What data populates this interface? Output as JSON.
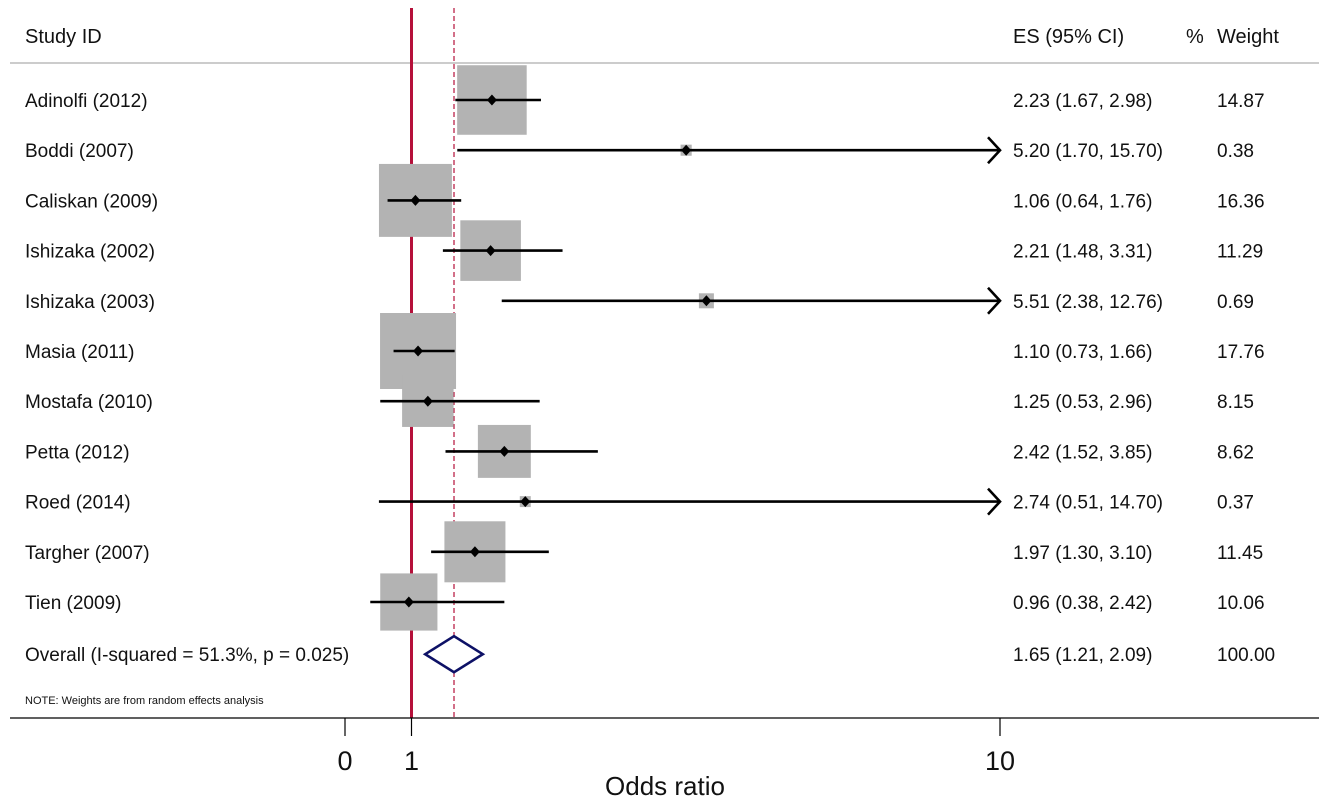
{
  "chart_data": {
    "type": "forest",
    "headers": {
      "study": "Study  ID",
      "es": "ES (95% CI)",
      "weight_pct": "%",
      "weight": "Weight"
    },
    "studies": [
      {
        "label": "Adinolfi (2012)",
        "es": 2.23,
        "lo": 1.67,
        "hi": 2.98,
        "es_text": "2.23 (1.67, 2.98)",
        "weight": 14.87,
        "weight_text": "14.87"
      },
      {
        "label": "Boddi (2007)",
        "es": 5.2,
        "lo": 1.7,
        "hi": 15.7,
        "es_text": "5.20 (1.70, 15.70)",
        "weight": 0.38,
        "weight_text": "0.38"
      },
      {
        "label": "Caliskan (2009)",
        "es": 1.06,
        "lo": 0.64,
        "hi": 1.76,
        "es_text": "1.06 (0.64, 1.76)",
        "weight": 16.36,
        "weight_text": "16.36"
      },
      {
        "label": "Ishizaka (2002)",
        "es": 2.21,
        "lo": 1.48,
        "hi": 3.31,
        "es_text": "2.21 (1.48, 3.31)",
        "weight": 11.29,
        "weight_text": "11.29"
      },
      {
        "label": "Ishizaka (2003)",
        "es": 5.51,
        "lo": 2.38,
        "hi": 12.76,
        "es_text": "5.51 (2.38, 12.76)",
        "weight": 0.69,
        "weight_text": "0.69"
      },
      {
        "label": "Masia (2011)",
        "es": 1.1,
        "lo": 0.73,
        "hi": 1.66,
        "es_text": "1.10 (0.73, 1.66)",
        "weight": 17.76,
        "weight_text": "17.76"
      },
      {
        "label": "Mostafa (2010)",
        "es": 1.25,
        "lo": 0.53,
        "hi": 2.96,
        "es_text": "1.25 (0.53, 2.96)",
        "weight": 8.15,
        "weight_text": "8.15"
      },
      {
        "label": "Petta (2012)",
        "es": 2.42,
        "lo": 1.52,
        "hi": 3.85,
        "es_text": "2.42 (1.52, 3.85)",
        "weight": 8.62,
        "weight_text": "8.62"
      },
      {
        "label": "Roed (2014)",
        "es": 2.74,
        "lo": 0.51,
        "hi": 14.7,
        "es_text": "2.74 (0.51, 14.70)",
        "weight": 0.37,
        "weight_text": "0.37"
      },
      {
        "label": "Targher (2007)",
        "es": 1.97,
        "lo": 1.3,
        "hi": 3.1,
        "es_text": "1.97 (1.30, 3.10)",
        "weight": 11.45,
        "weight_text": "11.45"
      },
      {
        "label": "Tien (2009)",
        "es": 0.96,
        "lo": 0.38,
        "hi": 2.42,
        "es_text": "0.96 (0.38, 2.42)",
        "weight": 10.06,
        "weight_text": "10.06"
      }
    ],
    "overall": {
      "label": "Overall  (I-squared = 51.3%, p = 0.025)",
      "es": 1.65,
      "lo": 1.21,
      "hi": 2.09,
      "es_text": "1.65 (1.21, 2.09)",
      "weight_text": "100.00"
    },
    "note": "NOTE: Weights are from random effects analysis",
    "xlabel": "Odds ratio",
    "xticks": [
      {
        "value": 0,
        "label": "0"
      },
      {
        "value": 1,
        "label": "1"
      },
      {
        "value": 10,
        "label": "10"
      }
    ],
    "xlim": [
      -1.0,
      14.3
    ],
    "clip_max": 10,
    "null_line": 1,
    "colors": {
      "null_line": "#b5103a",
      "overall_line": "#b5103a",
      "box": "#b3b3b3",
      "ci": "#000000",
      "diamond": "#0d1166",
      "rule": "#9a9a9a"
    }
  }
}
